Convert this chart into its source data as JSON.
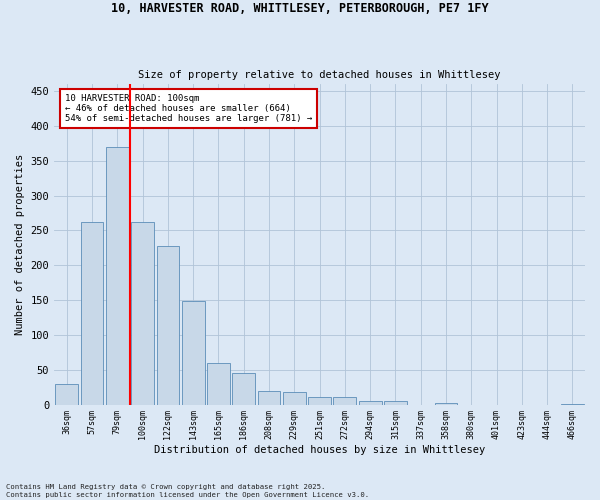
{
  "title_line1": "10, HARVESTER ROAD, WHITTLESEY, PETERBOROUGH, PE7 1FY",
  "title_line2": "Size of property relative to detached houses in Whittlesey",
  "xlabel": "Distribution of detached houses by size in Whittlesey",
  "ylabel": "Number of detached properties",
  "categories": [
    "36sqm",
    "57sqm",
    "79sqm",
    "100sqm",
    "122sqm",
    "143sqm",
    "165sqm",
    "186sqm",
    "208sqm",
    "229sqm",
    "251sqm",
    "272sqm",
    "294sqm",
    "315sqm",
    "337sqm",
    "358sqm",
    "380sqm",
    "401sqm",
    "423sqm",
    "444sqm",
    "466sqm"
  ],
  "values": [
    30,
    262,
    370,
    262,
    227,
    148,
    59,
    45,
    20,
    18,
    11,
    11,
    5,
    5,
    0,
    2,
    0,
    0,
    0,
    0,
    1
  ],
  "bar_color": "#c8d8e8",
  "bar_edge_color": "#5b8db8",
  "red_line_index": 3,
  "annotation_text": "10 HARVESTER ROAD: 100sqm\n← 46% of detached houses are smaller (664)\n54% of semi-detached houses are larger (781) →",
  "annotation_box_color": "#ffffff",
  "annotation_box_edge_color": "#cc0000",
  "ylim": [
    0,
    460
  ],
  "yticks": [
    0,
    50,
    100,
    150,
    200,
    250,
    300,
    350,
    400,
    450
  ],
  "footer_line1": "Contains HM Land Registry data © Crown copyright and database right 2025.",
  "footer_line2": "Contains public sector information licensed under the Open Government Licence v3.0.",
  "bg_color": "#dce8f5",
  "grid_color": "#b0c4d8"
}
